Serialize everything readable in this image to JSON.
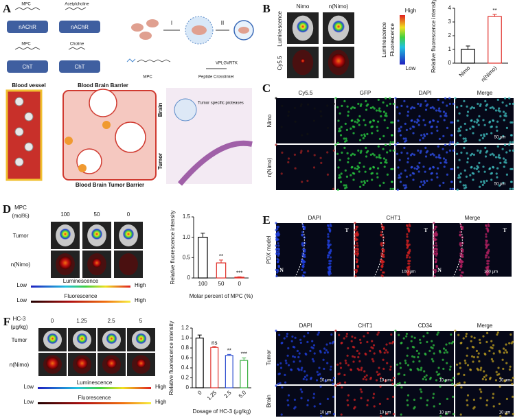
{
  "A": {
    "label": "A",
    "mpc_1": "MPC",
    "acetylcholine": "Acetylcholine",
    "nachr_1": "nAChR",
    "nachr_2": "nAChR",
    "mpc_2": "MPC",
    "choline": "Choline",
    "cht_1": "ChT",
    "cht_2": "ChT",
    "step_1": "I",
    "step_2": "II",
    "mpc_legend": "MPC",
    "crosslinker": "Peptide Crosslinker",
    "peptide": "VPLGVRTK",
    "blood_vessel": "Blood vessel",
    "bbb": "Blood Brain Barrier",
    "brain": "Brain",
    "tumor": "Tumor",
    "bbtb": "Blood Brain Tumor Barrier",
    "proteases": "Tumor specific proteases"
  },
  "B": {
    "label": "B",
    "columns": [
      "Nimo",
      "n(Nimo)"
    ],
    "rows": [
      "Luminescence",
      "Cy5.5"
    ],
    "scale_high": "High",
    "scale_low": "Low",
    "scale_names": [
      "Luminescence",
      "Fluorescence"
    ],
    "chart": {
      "type": "bar",
      "ylabel": "Relative fluorescence intensity",
      "categories": [
        "Nimo",
        "n(Nimo)"
      ],
      "values": [
        1,
        3.4
      ],
      "errors": [
        0.25,
        0.15
      ],
      "colors": [
        "#000000",
        "#e0302a"
      ],
      "annotations": [
        null,
        "**"
      ],
      "ylim": [
        0,
        4
      ],
      "yticks": [
        0,
        1,
        2,
        3,
        4
      ],
      "x_labels_rotated": true
    }
  },
  "C": {
    "label": "C",
    "columns": [
      "Cy5.5",
      "GFP",
      "DAPI",
      "Merge"
    ],
    "rows": [
      "Nimo",
      "n(Nimo)"
    ],
    "scale_bars": [
      "50 μm",
      "50 μm"
    ]
  },
  "D": {
    "label": "D",
    "header": [
      "MPC",
      "(mol%)"
    ],
    "columns": [
      "100",
      "50",
      "0"
    ],
    "rows": [
      "Tumor",
      "n(Nimo)"
    ],
    "scales": [
      {
        "low": "Low",
        "name": "Luminescence",
        "high": "High"
      },
      {
        "low": "Low",
        "name": "Fluorescence",
        "high": "High"
      }
    ],
    "chart": {
      "type": "bar",
      "ylabel": "Relative fluorescence intensity",
      "xlabel": "Molar percent of MPC  (%)",
      "categories": [
        "100",
        "50",
        "0"
      ],
      "values": [
        1,
        0.37,
        0.02
      ],
      "errors": [
        0.1,
        0.07,
        0.01
      ],
      "colors": [
        "#000000",
        "#e0302a",
        "#e0302a"
      ],
      "annotations": [
        null,
        "**",
        "***"
      ],
      "ylim": [
        0,
        1.5
      ],
      "yticks": [
        0,
        0.5,
        {
          "value": 1,
          "label": "1.0"
        },
        1.5
      ],
      "x_labels_rotated": false
    }
  },
  "E": {
    "label": "E",
    "top_columns": [
      "DAPI",
      "CHT1",
      "Merge"
    ],
    "top_row": "PDX model",
    "region_marks": [
      [
        "T",
        "N"
      ],
      [
        "T"
      ],
      [
        "T",
        "N"
      ]
    ],
    "top_scale_bars": [
      "100 μm",
      "100 μm"
    ],
    "bottom_columns": [
      "DAPI",
      "CHT1",
      "CD34",
      "Merge"
    ],
    "bottom_rows": [
      "Tumor",
      "Brain"
    ],
    "bottom_scale_bars": [
      [
        "10 μm",
        "10 μm",
        "10 μm",
        "10 μm"
      ],
      [
        "10 μm",
        "10 μm",
        "10 μm",
        "10 μm"
      ]
    ]
  },
  "F": {
    "label": "F",
    "header": [
      "HC-3",
      "(μg/kg)"
    ],
    "columns": [
      "0",
      "1.25",
      "2.5",
      "5"
    ],
    "rows": [
      "Tumor",
      "n(Nimo)"
    ],
    "scales": [
      {
        "low": "Low",
        "name": "Luminescence",
        "high": "High"
      },
      {
        "low": "Low",
        "name": "Fluorescence",
        "high": "High"
      }
    ],
    "chart": {
      "type": "bar",
      "ylabel": "Relative fluorescence intensity",
      "xlabel": "Dosage of HC-3 (μg/kg)",
      "categories": [
        "0",
        "1.25",
        "2.5",
        "5.0"
      ],
      "values": [
        1,
        0.81,
        0.65,
        0.55
      ],
      "errors": [
        0.06,
        0.02,
        0.02,
        0.05
      ],
      "colors": [
        "#000000",
        "#e0302a",
        "#3050d0",
        "#3cb043"
      ],
      "annotations": [
        null,
        "ns",
        "**",
        "***"
      ],
      "ylim": [
        0,
        1.2
      ],
      "yticks": [
        0,
        0.2,
        0.4,
        0.6,
        0.8,
        {
          "value": 1,
          "label": "1.0"
        },
        1.2
      ],
      "x_labels_rotated": true
    }
  }
}
